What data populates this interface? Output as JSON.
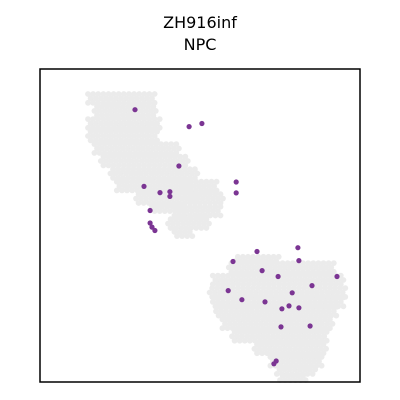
{
  "chart_data": {
    "type": "scatter",
    "title": "ZH916inf",
    "subtitle": "NPC",
    "xlabel": "",
    "ylabel": "",
    "xlim": [
      0,
      100
    ],
    "ylim": [
      0,
      100
    ],
    "grid": false,
    "legend": "none",
    "colors": {
      "background_spots": "#ebebeb",
      "highlight_spots": "#7b3593",
      "frame": "#000000"
    },
    "background_regions": [
      {
        "name": "upper-left-region",
        "x": [
          [
            15,
            36
          ],
          [
            17,
            37
          ],
          [
            15,
            38
          ],
          [
            15,
            37
          ],
          [
            17,
            44
          ],
          [
            19,
            47
          ],
          [
            22,
            50
          ],
          [
            24,
            48
          ],
          [
            30,
            50
          ],
          [
            35,
            46
          ]
        ],
        "y_rows": [
          92,
          88,
          84,
          80,
          76,
          72,
          68,
          64,
          60,
          56
        ]
      },
      {
        "name": "middle-strip-region",
        "x": [
          [
            44,
            56
          ],
          [
            46,
            58
          ],
          [
            42,
            57
          ],
          [
            40,
            53
          ],
          [
            42,
            48
          ]
        ],
        "y_rows": [
          64,
          60,
          56,
          52,
          48
        ]
      },
      {
        "name": "lower-right-region",
        "x": [
          [
            61,
            75
          ],
          [
            59,
            92
          ],
          [
            54,
            95
          ],
          [
            53,
            96
          ],
          [
            54,
            95
          ],
          [
            55,
            93
          ],
          [
            57,
            92
          ],
          [
            60,
            90
          ],
          [
            67,
            90
          ],
          [
            72,
            88
          ],
          [
            74,
            86
          ],
          [
            75,
            83
          ]
        ],
        "y_rows": [
          40,
          38,
          34,
          30,
          27,
          24,
          20,
          16,
          12,
          8,
          4,
          2
        ]
      }
    ],
    "points": [
      {
        "x": 29.7,
        "y": 87.0
      },
      {
        "x": 46.6,
        "y": 81.6
      },
      {
        "x": 50.6,
        "y": 82.6
      },
      {
        "x": 43.4,
        "y": 69.0
      },
      {
        "x": 61.3,
        "y": 63.9
      },
      {
        "x": 61.3,
        "y": 60.4
      },
      {
        "x": 32.5,
        "y": 62.5
      },
      {
        "x": 37.5,
        "y": 60.5
      },
      {
        "x": 40.6,
        "y": 59.3
      },
      {
        "x": 40.6,
        "y": 60.8
      },
      {
        "x": 34.4,
        "y": 54.8
      },
      {
        "x": 34.4,
        "y": 50.8
      },
      {
        "x": 35.0,
        "y": 49.5
      },
      {
        "x": 35.9,
        "y": 48.4
      },
      {
        "x": 67.8,
        "y": 41.7
      },
      {
        "x": 80.6,
        "y": 42.9
      },
      {
        "x": 60.3,
        "y": 38.5
      },
      {
        "x": 80.9,
        "y": 38.8
      },
      {
        "x": 69.4,
        "y": 35.6
      },
      {
        "x": 74.4,
        "y": 33.7
      },
      {
        "x": 92.8,
        "y": 33.7
      },
      {
        "x": 85.0,
        "y": 30.8
      },
      {
        "x": 58.8,
        "y": 29.2
      },
      {
        "x": 78.8,
        "y": 28.5
      },
      {
        "x": 63.1,
        "y": 26.3
      },
      {
        "x": 70.3,
        "y": 25.6
      },
      {
        "x": 77.8,
        "y": 24.3
      },
      {
        "x": 75.6,
        "y": 23.4
      },
      {
        "x": 80.9,
        "y": 23.7
      },
      {
        "x": 75.3,
        "y": 17.6
      },
      {
        "x": 84.4,
        "y": 17.9
      },
      {
        "x": 73.8,
        "y": 6.7
      },
      {
        "x": 73.1,
        "y": 5.8
      }
    ]
  }
}
